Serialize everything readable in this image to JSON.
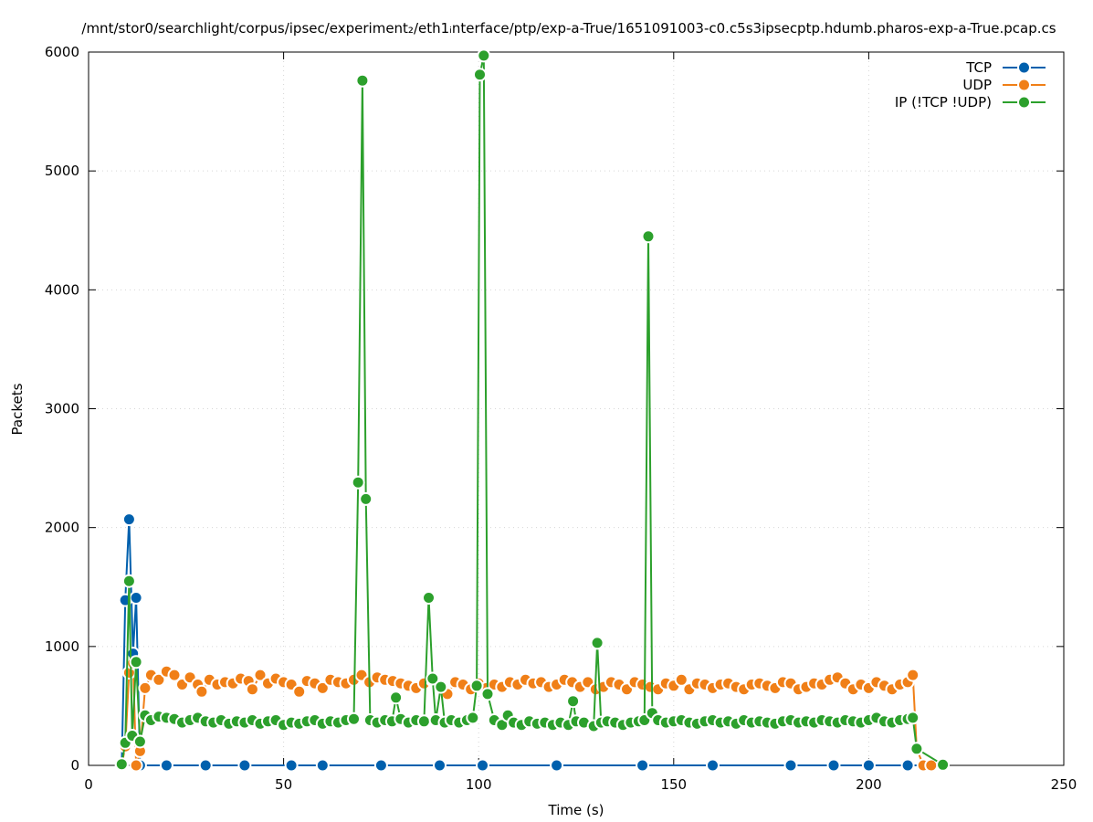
{
  "chart_data": {
    "type": "line",
    "title": "/mnt/stor0/searchlight/corpus/ipsec/experiment₂/eth1ᵢnterface/ptp/exp-a-True/1651091003-c0.c5s3ipsecptp.hdumb.pharos-exp-a-True.pcap.cs",
    "xlabel": "Time (s)",
    "ylabel": "Packets",
    "xlim": [
      0,
      250
    ],
    "ylim": [
      0,
      6000
    ],
    "x_ticks": [
      0,
      50,
      100,
      150,
      200,
      250
    ],
    "y_ticks": [
      0,
      1000,
      2000,
      3000,
      4000,
      5000,
      6000
    ],
    "grid": true,
    "legend_position": "top-right",
    "series": [
      {
        "name": "TCP",
        "color": "#0060ad",
        "points": [
          [
            8.5,
            0
          ],
          [
            9.4,
            1390
          ],
          [
            10.4,
            2070
          ],
          [
            11.4,
            940
          ],
          [
            12.2,
            1410
          ],
          [
            13.2,
            0
          ],
          [
            20,
            0
          ],
          [
            30,
            0
          ],
          [
            40,
            0
          ],
          [
            52,
            0
          ],
          [
            60,
            0
          ],
          [
            75,
            0
          ],
          [
            90,
            0
          ],
          [
            101,
            0
          ],
          [
            120,
            0
          ],
          [
            142,
            0
          ],
          [
            160,
            0
          ],
          [
            180,
            0
          ],
          [
            191,
            0
          ],
          [
            200,
            0
          ],
          [
            210,
            0
          ],
          [
            216,
            0
          ]
        ]
      },
      {
        "name": "UDP",
        "color": "#f07f17",
        "points": [
          [
            8.5,
            0
          ],
          [
            9.4,
            160
          ],
          [
            10.4,
            780
          ],
          [
            11.4,
            860
          ],
          [
            12.2,
            0
          ],
          [
            13.2,
            120
          ],
          [
            14.5,
            650
          ],
          [
            16,
            760
          ],
          [
            18,
            720
          ],
          [
            20,
            790
          ],
          [
            22,
            760
          ],
          [
            24,
            680
          ],
          [
            26,
            740
          ],
          [
            28,
            680
          ],
          [
            29,
            620
          ],
          [
            31,
            720
          ],
          [
            33,
            680
          ],
          [
            35,
            700
          ],
          [
            37,
            690
          ],
          [
            39,
            730
          ],
          [
            41,
            710
          ],
          [
            42,
            640
          ],
          [
            44,
            760
          ],
          [
            46,
            690
          ],
          [
            48,
            730
          ],
          [
            50,
            700
          ],
          [
            52,
            680
          ],
          [
            54,
            620
          ],
          [
            56,
            710
          ],
          [
            58,
            690
          ],
          [
            60,
            650
          ],
          [
            62,
            720
          ],
          [
            64,
            700
          ],
          [
            66,
            690
          ],
          [
            68,
            720
          ],
          [
            70,
            760
          ],
          [
            72,
            700
          ],
          [
            74,
            740
          ],
          [
            76,
            720
          ],
          [
            78,
            710
          ],
          [
            80,
            690
          ],
          [
            82,
            670
          ],
          [
            84,
            650
          ],
          [
            86,
            690
          ],
          [
            88,
            720
          ],
          [
            90,
            660
          ],
          [
            92,
            600
          ],
          [
            94,
            700
          ],
          [
            96,
            680
          ],
          [
            98,
            640
          ],
          [
            100,
            690
          ],
          [
            102,
            650
          ],
          [
            104,
            680
          ],
          [
            106,
            660
          ],
          [
            108,
            700
          ],
          [
            110,
            680
          ],
          [
            112,
            720
          ],
          [
            114,
            690
          ],
          [
            116,
            700
          ],
          [
            118,
            660
          ],
          [
            120,
            680
          ],
          [
            122,
            720
          ],
          [
            124,
            700
          ],
          [
            126,
            660
          ],
          [
            128,
            700
          ],
          [
            130,
            640
          ],
          [
            132,
            660
          ],
          [
            134,
            700
          ],
          [
            136,
            680
          ],
          [
            138,
            640
          ],
          [
            140,
            700
          ],
          [
            142,
            680
          ],
          [
            144,
            660
          ],
          [
            146,
            640
          ],
          [
            148,
            690
          ],
          [
            150,
            670
          ],
          [
            152,
            720
          ],
          [
            154,
            640
          ],
          [
            156,
            690
          ],
          [
            158,
            680
          ],
          [
            160,
            650
          ],
          [
            162,
            680
          ],
          [
            164,
            690
          ],
          [
            166,
            660
          ],
          [
            168,
            640
          ],
          [
            170,
            680
          ],
          [
            172,
            690
          ],
          [
            174,
            670
          ],
          [
            176,
            650
          ],
          [
            178,
            700
          ],
          [
            180,
            690
          ],
          [
            182,
            640
          ],
          [
            184,
            660
          ],
          [
            186,
            690
          ],
          [
            188,
            680
          ],
          [
            190,
            720
          ],
          [
            192,
            740
          ],
          [
            194,
            690
          ],
          [
            196,
            640
          ],
          [
            198,
            680
          ],
          [
            200,
            650
          ],
          [
            202,
            700
          ],
          [
            204,
            670
          ],
          [
            206,
            640
          ],
          [
            208,
            680
          ],
          [
            210,
            700
          ],
          [
            211.3,
            760
          ],
          [
            212.3,
            140
          ],
          [
            214,
            0
          ],
          [
            216,
            0
          ]
        ]
      },
      {
        "name": "IP (!TCP  !UDP)",
        "color": "#2ca02c",
        "points": [
          [
            8.5,
            10
          ],
          [
            9.4,
            190
          ],
          [
            10.4,
            1550
          ],
          [
            11.2,
            250
          ],
          [
            12.2,
            870
          ],
          [
            13.2,
            200
          ],
          [
            14.5,
            420
          ],
          [
            16,
            380
          ],
          [
            18,
            410
          ],
          [
            20,
            400
          ],
          [
            22,
            390
          ],
          [
            24,
            360
          ],
          [
            26,
            380
          ],
          [
            28,
            400
          ],
          [
            30,
            370
          ],
          [
            32,
            360
          ],
          [
            34,
            380
          ],
          [
            36,
            350
          ],
          [
            38,
            370
          ],
          [
            40,
            360
          ],
          [
            42,
            380
          ],
          [
            44,
            350
          ],
          [
            46,
            370
          ],
          [
            48,
            380
          ],
          [
            50,
            340
          ],
          [
            52,
            360
          ],
          [
            54,
            350
          ],
          [
            56,
            370
          ],
          [
            58,
            380
          ],
          [
            60,
            350
          ],
          [
            62,
            370
          ],
          [
            64,
            360
          ],
          [
            66,
            380
          ],
          [
            68,
            390
          ],
          [
            69.1,
            2380
          ],
          [
            70.2,
            5760
          ],
          [
            71.1,
            2240
          ],
          [
            72.2,
            380
          ],
          [
            74,
            360
          ],
          [
            76,
            380
          ],
          [
            77.8,
            370
          ],
          [
            78.8,
            570
          ],
          [
            80,
            390
          ],
          [
            82,
            360
          ],
          [
            84,
            380
          ],
          [
            86,
            370
          ],
          [
            87.2,
            1410
          ],
          [
            88.2,
            730
          ],
          [
            89,
            380
          ],
          [
            90.3,
            660
          ],
          [
            91.3,
            360
          ],
          [
            93,
            380
          ],
          [
            95,
            360
          ],
          [
            97,
            380
          ],
          [
            98.5,
            400
          ],
          [
            99.5,
            670
          ],
          [
            100.3,
            5810
          ],
          [
            101.3,
            5970
          ],
          [
            102.3,
            600
          ],
          [
            104,
            380
          ],
          [
            106,
            340
          ],
          [
            107.5,
            420
          ],
          [
            109,
            360
          ],
          [
            111,
            340
          ],
          [
            113,
            370
          ],
          [
            115,
            350
          ],
          [
            117,
            360
          ],
          [
            119,
            340
          ],
          [
            121,
            360
          ],
          [
            123,
            340
          ],
          [
            124.2,
            540
          ],
          [
            125,
            370
          ],
          [
            127,
            360
          ],
          [
            129.5,
            330
          ],
          [
            130.4,
            1030
          ],
          [
            131.4,
            360
          ],
          [
            133,
            370
          ],
          [
            135,
            360
          ],
          [
            137,
            340
          ],
          [
            139,
            360
          ],
          [
            141,
            370
          ],
          [
            142.5,
            380
          ],
          [
            143.5,
            4450
          ],
          [
            144.5,
            440
          ],
          [
            146,
            380
          ],
          [
            148,
            360
          ],
          [
            150,
            370
          ],
          [
            152,
            380
          ],
          [
            154,
            360
          ],
          [
            156,
            350
          ],
          [
            158,
            370
          ],
          [
            160,
            380
          ],
          [
            162,
            360
          ],
          [
            164,
            370
          ],
          [
            166,
            350
          ],
          [
            168,
            380
          ],
          [
            170,
            360
          ],
          [
            172,
            370
          ],
          [
            174,
            360
          ],
          [
            176,
            350
          ],
          [
            178,
            370
          ],
          [
            180,
            380
          ],
          [
            182,
            360
          ],
          [
            184,
            370
          ],
          [
            186,
            360
          ],
          [
            188,
            380
          ],
          [
            190,
            370
          ],
          [
            192,
            360
          ],
          [
            194,
            380
          ],
          [
            196,
            370
          ],
          [
            198,
            360
          ],
          [
            200,
            380
          ],
          [
            202,
            400
          ],
          [
            204,
            370
          ],
          [
            206,
            360
          ],
          [
            208,
            380
          ],
          [
            210,
            390
          ],
          [
            211.3,
            400
          ],
          [
            212.3,
            140
          ],
          [
            219,
            5
          ]
        ]
      }
    ]
  }
}
